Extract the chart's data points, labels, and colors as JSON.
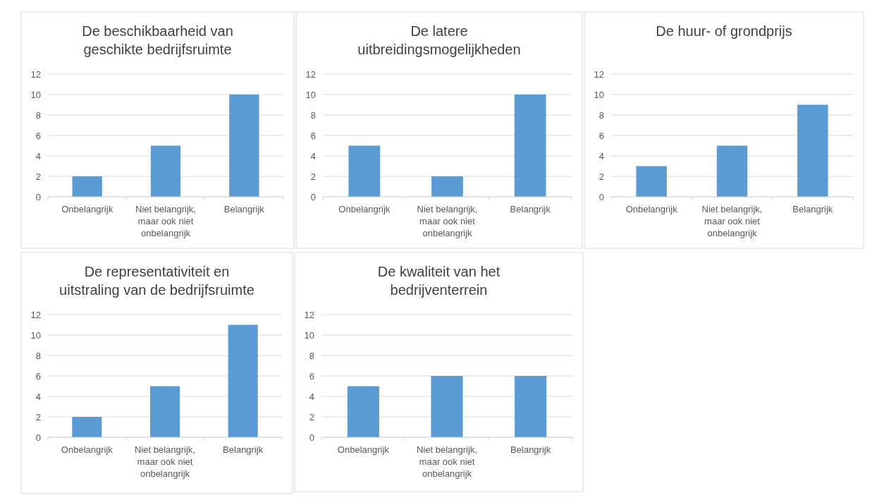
{
  "chart_data": [
    {
      "type": "bar",
      "title": "De beschikbaarheid van geschikte bedrijfsruimte",
      "categories": [
        "Onbelangrijk",
        "Niet belangrijk, maar ook niet onbelangrijk",
        "Belangrijk"
      ],
      "values": [
        2,
        5,
        10
      ],
      "color": "#5b9bd5",
      "ylim": [
        0,
        12
      ],
      "yticks": [
        0,
        2,
        4,
        6,
        8,
        10,
        12
      ],
      "grid": "y"
    },
    {
      "type": "bar",
      "title": "De latere uitbreidingsmogelijkheden",
      "categories": [
        "Onbelangrijk",
        "Niet belangrijk, maar ook niet onbelangrijk",
        "Belangrijk"
      ],
      "values": [
        5,
        2,
        10
      ],
      "color": "#5b9bd5",
      "ylim": [
        0,
        12
      ],
      "yticks": [
        0,
        2,
        4,
        6,
        8,
        10,
        12
      ],
      "grid": "y"
    },
    {
      "type": "bar",
      "title": "De huur- of grondprijs",
      "categories": [
        "Onbelangrijk",
        "Niet belangrijk, maar ook niet onbelangrijk",
        "Belangrijk"
      ],
      "values": [
        3,
        5,
        9
      ],
      "color": "#5b9bd5",
      "ylim": [
        0,
        12
      ],
      "yticks": [
        0,
        2,
        4,
        6,
        8,
        10,
        12
      ],
      "grid": "y"
    },
    {
      "type": "bar",
      "title": "De representativiteit en uitstraling van de bedrijfsruimte",
      "categories": [
        "Onbelangrijk",
        "Niet belangrijk, maar ook niet onbelangrijk",
        "Belangrijk"
      ],
      "values": [
        2,
        5,
        11
      ],
      "color": "#5b9bd5",
      "ylim": [
        0,
        12
      ],
      "yticks": [
        0,
        2,
        4,
        6,
        8,
        10,
        12
      ],
      "grid": "y"
    },
    {
      "type": "bar",
      "title": "De kwaliteit van het bedrijventerrein",
      "categories": [
        "Onbelangrijk",
        "Niet belangrijk, maar ook niet onbelangrijk",
        "Belangrijk"
      ],
      "values": [
        5,
        6,
        6
      ],
      "color": "#5b9bd5",
      "ylim": [
        0,
        12
      ],
      "yticks": [
        0,
        2,
        4,
        6,
        8,
        10,
        12
      ],
      "grid": "y"
    }
  ]
}
